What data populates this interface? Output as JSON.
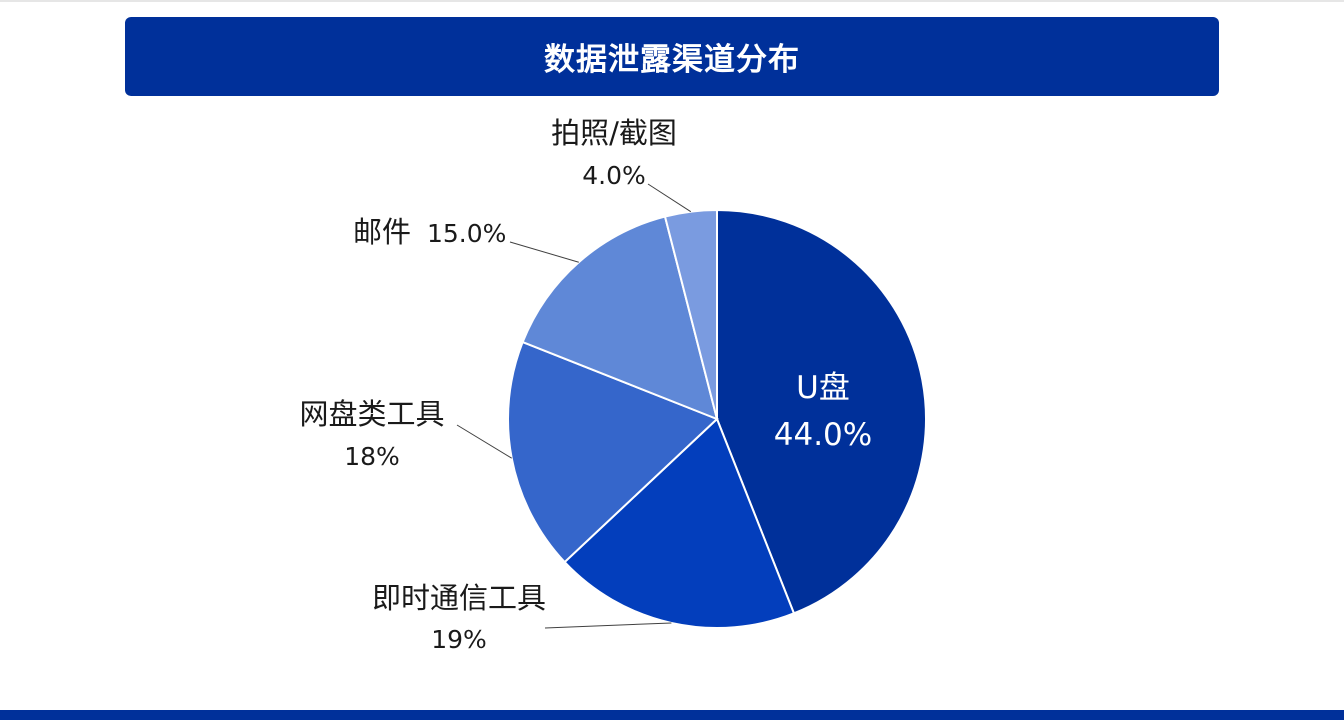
{
  "header": {
    "title": "数据泄露渠道分布"
  },
  "colors": {
    "brand": "#00309a",
    "slices": [
      "#00309a",
      "#033ebc",
      "#3566cb",
      "#5f88d7",
      "#7a9be0"
    ]
  },
  "chart_data": {
    "type": "pie",
    "title": "数据泄露渠道分布",
    "start": "12 o'clock",
    "direction": "clockwise",
    "slices": [
      {
        "name": "U盘",
        "value": 44.0,
        "label_text": "44.0%",
        "label_position": "inside"
      },
      {
        "name": "即时通信工具",
        "value": 19,
        "label_text": "19%",
        "label_position": "outside"
      },
      {
        "name": "网盘类工具",
        "value": 18,
        "label_text": "18%",
        "label_position": "outside"
      },
      {
        "name": "邮件",
        "value": 15.0,
        "label_text": "15.0%",
        "label_position": "outside"
      },
      {
        "name": "拍照/截图",
        "value": 4.0,
        "label_text": "4.0%",
        "label_position": "outside"
      }
    ]
  }
}
